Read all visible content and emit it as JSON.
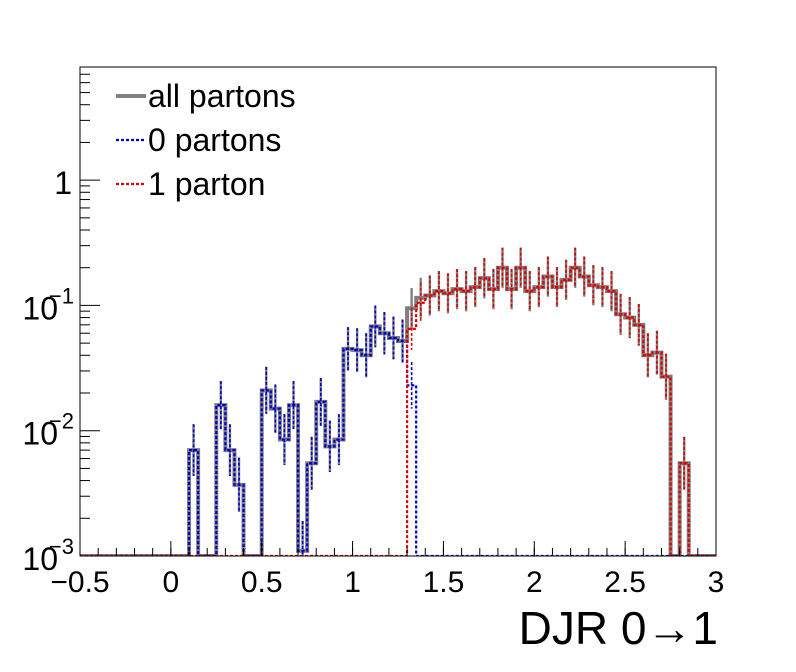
{
  "chart_data": {
    "type": "histogram",
    "xlabel": "DJR 0→1",
    "ylabel": "",
    "xlim": [
      -0.5,
      3.0
    ],
    "ylim": [
      0.001,
      8.0
    ],
    "y_log": true,
    "grid": false,
    "legend_position": "top-left",
    "x_ticks": [
      "−0.5",
      "0",
      "0.5",
      "1",
      "1.5",
      "2",
      "2.5",
      "3"
    ],
    "x_tick_values": [
      -0.5,
      0,
      0.5,
      1,
      1.5,
      2,
      2.5,
      3
    ],
    "y_ticks": [
      {
        "value": 0.001,
        "base": "10",
        "exp": "−3"
      },
      {
        "value": 0.01,
        "base": "10",
        "exp": "−2"
      },
      {
        "value": 0.1,
        "base": "10",
        "exp": "−1"
      },
      {
        "value": 1,
        "base": "1",
        "exp": ""
      }
    ],
    "bin_edges_start": -0.5,
    "bin_width": 0.05,
    "series": [
      {
        "name": "all partons",
        "color": "#808080",
        "style": "solid",
        "values": [
          0.001,
          0.001,
          0.001,
          0.001,
          0.001,
          0.001,
          0.001,
          0.001,
          0.001,
          0.001,
          0.001,
          0.001,
          0.007,
          0.001,
          0.001,
          0.016,
          0.007,
          0.0037,
          0.001,
          0.001,
          0.021,
          0.015,
          0.0085,
          0.016,
          0.0011,
          0.0055,
          0.017,
          0.0075,
          0.0085,
          0.045,
          0.044,
          0.04,
          0.068,
          0.06,
          0.055,
          0.052,
          0.095,
          0.115,
          0.12,
          0.13,
          0.125,
          0.135,
          0.13,
          0.14,
          0.165,
          0.135,
          0.2,
          0.135,
          0.2,
          0.13,
          0.14,
          0.17,
          0.14,
          0.16,
          0.2,
          0.17,
          0.145,
          0.14,
          0.13,
          0.085,
          0.08,
          0.07,
          0.04,
          0.042,
          0.027,
          0.001,
          0.0055,
          0.001,
          0.001,
          0.001
        ]
      },
      {
        "name": "0 partons",
        "color": "#0000cc",
        "style": "dotted",
        "values": [
          0.001,
          0.001,
          0.001,
          0.001,
          0.001,
          0.001,
          0.001,
          0.001,
          0.001,
          0.001,
          0.001,
          0.001,
          0.007,
          0.001,
          0.001,
          0.016,
          0.007,
          0.0037,
          0.001,
          0.001,
          0.021,
          0.015,
          0.0085,
          0.016,
          0.0011,
          0.0055,
          0.017,
          0.0075,
          0.0085,
          0.045,
          0.044,
          0.04,
          0.068,
          0.06,
          0.055,
          0.052,
          0.023,
          0.001,
          0.001,
          0.001,
          0.001,
          0.001,
          0.001,
          0.001,
          0.001,
          0.001,
          0.001,
          0.001,
          0.001,
          0.001,
          0.001,
          0.001,
          0.001,
          0.001,
          0.001,
          0.001,
          0.001,
          0.001,
          0.001,
          0.001,
          0.001,
          0.001,
          0.001,
          0.001,
          0.001,
          0.001,
          0.001,
          0.001,
          0.001,
          0.001
        ]
      },
      {
        "name": "1 parton",
        "color": "#dd0000",
        "style": "dotted",
        "values": [
          0.001,
          0.001,
          0.001,
          0.001,
          0.001,
          0.001,
          0.001,
          0.001,
          0.001,
          0.001,
          0.001,
          0.001,
          0.001,
          0.001,
          0.001,
          0.001,
          0.001,
          0.001,
          0.001,
          0.001,
          0.001,
          0.001,
          0.001,
          0.001,
          0.001,
          0.001,
          0.001,
          0.001,
          0.001,
          0.001,
          0.001,
          0.001,
          0.001,
          0.001,
          0.001,
          0.001,
          0.065,
          0.105,
          0.12,
          0.13,
          0.125,
          0.135,
          0.13,
          0.14,
          0.165,
          0.135,
          0.2,
          0.135,
          0.2,
          0.13,
          0.14,
          0.17,
          0.14,
          0.16,
          0.2,
          0.17,
          0.145,
          0.14,
          0.13,
          0.085,
          0.08,
          0.07,
          0.04,
          0.042,
          0.027,
          0.001,
          0.0055,
          0.001,
          0.001,
          0.001
        ]
      }
    ]
  }
}
